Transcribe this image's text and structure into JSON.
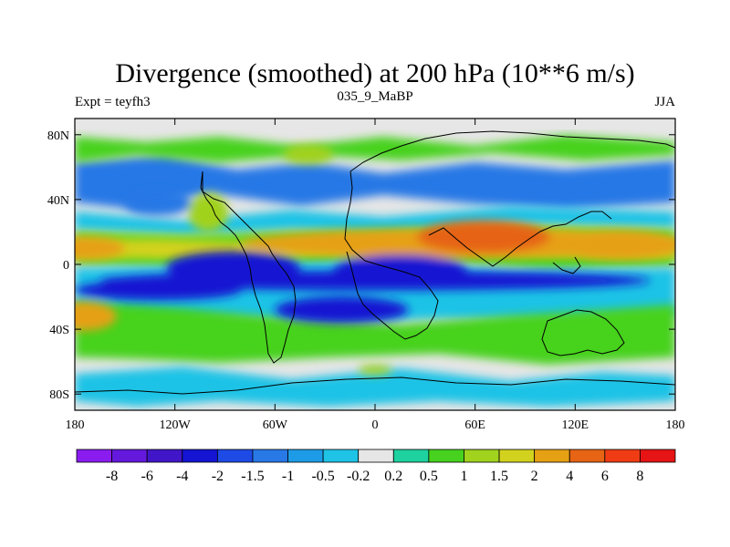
{
  "chart_data": {
    "type": "heatmap",
    "title": "Divergence (smoothed) at 200 hPa (10**6 m/s)",
    "subtitle_left": "Expt = teyfh3",
    "subtitle_center": "035_9_MaBP",
    "subtitle_right": "JJA",
    "x_range": [
      -180,
      180
    ],
    "y_range": [
      -90,
      90
    ],
    "x_ticks": [
      {
        "value": -180,
        "label": "180"
      },
      {
        "value": -120,
        "label": "120W"
      },
      {
        "value": -60,
        "label": "60W"
      },
      {
        "value": 0,
        "label": "0"
      },
      {
        "value": 60,
        "label": "60E"
      },
      {
        "value": 120,
        "label": "120E"
      },
      {
        "value": 180,
        "label": "180"
      }
    ],
    "y_ticks": [
      {
        "value": 80,
        "label": "80N"
      },
      {
        "value": 40,
        "label": "40N"
      },
      {
        "value": 0,
        "label": "0"
      },
      {
        "value": -40,
        "label": "40S"
      },
      {
        "value": -80,
        "label": "80S"
      }
    ],
    "colorbar": {
      "colors": [
        "#8a1cf0",
        "#6419dc",
        "#4116c8",
        "#1414d2",
        "#1e4be6",
        "#2878e6",
        "#1e9be6",
        "#1ec3e6",
        "#e6e6e6",
        "#1ed2a0",
        "#46d21e",
        "#a0d21e",
        "#d2d21e",
        "#e6a014",
        "#e66414",
        "#f03c14",
        "#e61414"
      ],
      "labels": [
        "-8",
        "-6",
        "-4",
        "-2",
        "-1.5",
        "-1",
        "-0.5",
        "-0.2",
        "0.2",
        "0.5",
        "1",
        "1.5",
        "2",
        "4",
        "6",
        "8"
      ]
    },
    "features": [
      {
        "lon": 50,
        "lat": 13,
        "rx": 130,
        "ry": 9,
        "value": 2.5
      },
      {
        "lon": 65,
        "lat": 17,
        "rx": 40,
        "ry": 10,
        "value": 5
      },
      {
        "lon": -175,
        "lat": 10,
        "rx": 25,
        "ry": 7,
        "value": 2.5
      },
      {
        "lon": 145,
        "lat": 12,
        "rx": 40,
        "ry": 9,
        "value": 2.5
      },
      {
        "lon": -175,
        "lat": -32,
        "rx": 20,
        "ry": 9,
        "value": 2.5
      },
      {
        "lon": 0,
        "lat": -10,
        "rx": 165,
        "ry": 6,
        "value": -2.5
      },
      {
        "lon": 15,
        "lat": -4,
        "rx": 40,
        "ry": 10,
        "value": -3
      },
      {
        "lon": -85,
        "lat": -2,
        "rx": 40,
        "ry": 10,
        "value": -2.5
      },
      {
        "lon": -20,
        "lat": -28,
        "rx": 40,
        "ry": 8,
        "value": -2.5
      },
      {
        "lon": -130,
        "lat": -16,
        "rx": 50,
        "ry": 6,
        "value": -2.5
      },
      {
        "lon": -130,
        "lat": 38,
        "rx": 20,
        "ry": 8,
        "value": -1.2
      },
      {
        "lon": -100,
        "lat": 32,
        "rx": 12,
        "ry": 12,
        "value": 1.2
      },
      {
        "lon": -40,
        "lat": 68,
        "rx": 15,
        "ry": 6,
        "value": 1.2
      },
      {
        "lon": 0,
        "lat": -65,
        "rx": 10,
        "ry": 3,
        "value": 1.2
      }
    ]
  }
}
